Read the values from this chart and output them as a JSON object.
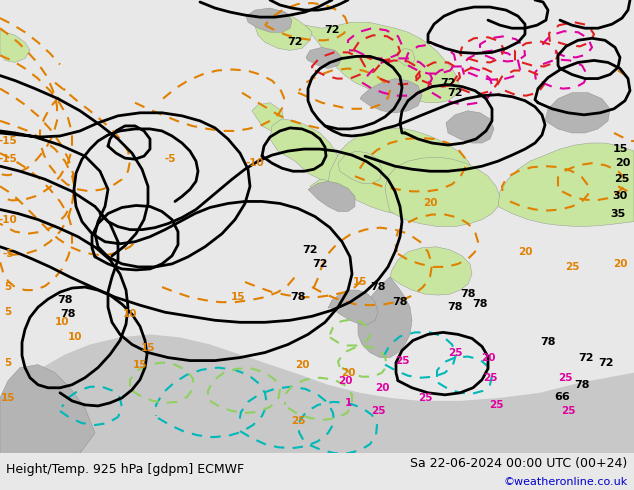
{
  "title_left": "Height/Temp. 925 hPa [gdpm] ECMWF",
  "title_right": "Sa 22-06-2024 00:00 UTC (00+24)",
  "credit": "©weatheronline.co.uk",
  "bg_color": "#e8e8e8",
  "land_green_color": "#c8e6a0",
  "land_gray_color": "#b4b4b4",
  "ocean_color": "#d8d8d8",
  "black": "#000000",
  "orange": "#e08000",
  "cyan": "#00b8b8",
  "lime": "#90d060",
  "magenta": "#e000a0",
  "red": "#e02020",
  "title_fontsize": 9,
  "credit_fontsize": 8,
  "figsize": [
    6.34,
    4.9
  ],
  "dpi": 100
}
